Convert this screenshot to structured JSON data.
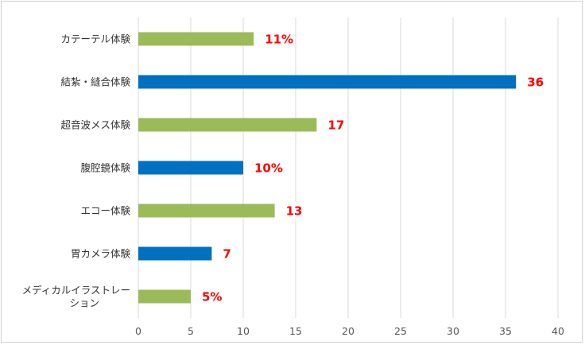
{
  "chart_data": {
    "type": "bar",
    "orientation": "horizontal",
    "title": "",
    "xlabel": "",
    "ylabel": "",
    "categories": [
      "カテーテル体験",
      "結紮・縫合体験",
      "超音波メス体験",
      "腹腔鏡体験",
      "エコー体験",
      "胃カメラ体験",
      "メディカルイラストレーション"
    ],
    "category_lines": [
      [
        "カテーテル体験"
      ],
      [
        "結紮・縫合体験"
      ],
      [
        "超音波メス体験"
      ],
      [
        "腹腔鏡体験"
      ],
      [
        "エコー体験"
      ],
      [
        "胃カメラ体験"
      ],
      [
        "メディカルイラストレー",
        "ション"
      ]
    ],
    "values": [
      11,
      36,
      17,
      10,
      13,
      7,
      5
    ],
    "data_labels": [
      "11%",
      "36",
      "17",
      "10%",
      "13",
      "7",
      "5%"
    ],
    "bar_colors": [
      "#9bbb59",
      "#0070c0",
      "#9bbb59",
      "#0070c0",
      "#9bbb59",
      "#0070c0",
      "#9bbb59"
    ],
    "data_label_color": "#ff0000",
    "xlim": [
      0,
      40
    ],
    "xticks": [
      0,
      5,
      10,
      15,
      20,
      25,
      30,
      35,
      40
    ],
    "grid": "vertical",
    "grid_color": "#d9d9d9",
    "legend": "none"
  }
}
